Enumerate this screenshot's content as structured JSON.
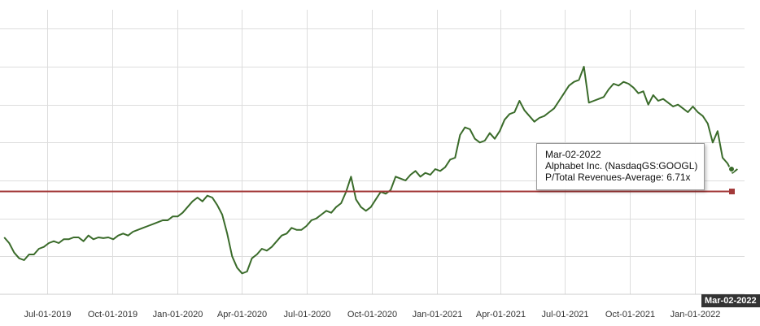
{
  "chart_data": {
    "type": "line",
    "series": [
      {
        "name": "Alphabet Inc. (NasdaqGS:GOOGL)",
        "color": "#3a6b2a",
        "points": [
          [
            "2019-05-01",
            5.5
          ],
          [
            "2019-05-08",
            5.35
          ],
          [
            "2019-05-15",
            5.1
          ],
          [
            "2019-05-22",
            4.95
          ],
          [
            "2019-05-29",
            4.9
          ],
          [
            "2019-06-05",
            5.05
          ],
          [
            "2019-06-12",
            5.05
          ],
          [
            "2019-06-19",
            5.2
          ],
          [
            "2019-06-26",
            5.25
          ],
          [
            "2019-07-03",
            5.35
          ],
          [
            "2019-07-10",
            5.4
          ],
          [
            "2019-07-17",
            5.35
          ],
          [
            "2019-07-24",
            5.45
          ],
          [
            "2019-07-31",
            5.45
          ],
          [
            "2019-08-07",
            5.5
          ],
          [
            "2019-08-14",
            5.5
          ],
          [
            "2019-08-21",
            5.4
          ],
          [
            "2019-08-28",
            5.55
          ],
          [
            "2019-09-04",
            5.45
          ],
          [
            "2019-09-11",
            5.5
          ],
          [
            "2019-09-18",
            5.48
          ],
          [
            "2019-09-25",
            5.5
          ],
          [
            "2019-10-02",
            5.45
          ],
          [
            "2019-10-09",
            5.55
          ],
          [
            "2019-10-16",
            5.6
          ],
          [
            "2019-10-23",
            5.55
          ],
          [
            "2019-10-30",
            5.65
          ],
          [
            "2019-11-06",
            5.7
          ],
          [
            "2019-11-13",
            5.75
          ],
          [
            "2019-11-20",
            5.8
          ],
          [
            "2019-11-27",
            5.85
          ],
          [
            "2019-12-04",
            5.9
          ],
          [
            "2019-12-11",
            5.95
          ],
          [
            "2019-12-18",
            5.95
          ],
          [
            "2019-12-25",
            6.05
          ],
          [
            "2020-01-01",
            6.05
          ],
          [
            "2020-01-08",
            6.15
          ],
          [
            "2020-01-15",
            6.3
          ],
          [
            "2020-01-22",
            6.45
          ],
          [
            "2020-01-29",
            6.55
          ],
          [
            "2020-02-05",
            6.45
          ],
          [
            "2020-02-12",
            6.6
          ],
          [
            "2020-02-19",
            6.55
          ],
          [
            "2020-02-26",
            6.35
          ],
          [
            "2020-03-04",
            6.1
          ],
          [
            "2020-03-11",
            5.6
          ],
          [
            "2020-03-18",
            5.0
          ],
          [
            "2020-03-25",
            4.7
          ],
          [
            "2020-04-01",
            4.55
          ],
          [
            "2020-04-08",
            4.6
          ],
          [
            "2020-04-15",
            4.95
          ],
          [
            "2020-04-22",
            5.05
          ],
          [
            "2020-04-29",
            5.2
          ],
          [
            "2020-05-06",
            5.15
          ],
          [
            "2020-05-13",
            5.25
          ],
          [
            "2020-05-20",
            5.4
          ],
          [
            "2020-05-27",
            5.55
          ],
          [
            "2020-06-03",
            5.6
          ],
          [
            "2020-06-10",
            5.75
          ],
          [
            "2020-06-17",
            5.7
          ],
          [
            "2020-06-24",
            5.7
          ],
          [
            "2020-07-01",
            5.8
          ],
          [
            "2020-07-08",
            5.95
          ],
          [
            "2020-07-15",
            6.0
          ],
          [
            "2020-07-22",
            6.1
          ],
          [
            "2020-07-29",
            6.2
          ],
          [
            "2020-08-05",
            6.15
          ],
          [
            "2020-08-12",
            6.3
          ],
          [
            "2020-08-19",
            6.4
          ],
          [
            "2020-08-26",
            6.7
          ],
          [
            "2020-09-02",
            7.1
          ],
          [
            "2020-09-09",
            6.5
          ],
          [
            "2020-09-16",
            6.3
          ],
          [
            "2020-09-23",
            6.2
          ],
          [
            "2020-09-30",
            6.3
          ],
          [
            "2020-10-07",
            6.5
          ],
          [
            "2020-10-14",
            6.7
          ],
          [
            "2020-10-21",
            6.65
          ],
          [
            "2020-10-28",
            6.75
          ],
          [
            "2020-11-04",
            7.1
          ],
          [
            "2020-11-11",
            7.05
          ],
          [
            "2020-11-18",
            7.0
          ],
          [
            "2020-11-25",
            7.15
          ],
          [
            "2020-12-02",
            7.25
          ],
          [
            "2020-12-09",
            7.1
          ],
          [
            "2020-12-16",
            7.2
          ],
          [
            "2020-12-23",
            7.15
          ],
          [
            "2020-12-30",
            7.3
          ],
          [
            "2021-01-06",
            7.25
          ],
          [
            "2021-01-13",
            7.35
          ],
          [
            "2021-01-20",
            7.55
          ],
          [
            "2021-01-27",
            7.6
          ],
          [
            "2021-02-03",
            8.2
          ],
          [
            "2021-02-10",
            8.4
          ],
          [
            "2021-02-17",
            8.35
          ],
          [
            "2021-02-24",
            8.1
          ],
          [
            "2021-03-03",
            8.0
          ],
          [
            "2021-03-10",
            8.05
          ],
          [
            "2021-03-17",
            8.25
          ],
          [
            "2021-03-24",
            8.1
          ],
          [
            "2021-03-31",
            8.3
          ],
          [
            "2021-04-07",
            8.6
          ],
          [
            "2021-04-14",
            8.75
          ],
          [
            "2021-04-21",
            8.8
          ],
          [
            "2021-04-28",
            9.1
          ],
          [
            "2021-05-05",
            8.85
          ],
          [
            "2021-05-12",
            8.7
          ],
          [
            "2021-05-19",
            8.55
          ],
          [
            "2021-05-26",
            8.65
          ],
          [
            "2021-06-02",
            8.7
          ],
          [
            "2021-06-09",
            8.8
          ],
          [
            "2021-06-16",
            8.9
          ],
          [
            "2021-06-23",
            9.1
          ],
          [
            "2021-06-30",
            9.3
          ],
          [
            "2021-07-07",
            9.5
          ],
          [
            "2021-07-14",
            9.6
          ],
          [
            "2021-07-21",
            9.65
          ],
          [
            "2021-07-28",
            10.0
          ],
          [
            "2021-08-04",
            9.05
          ],
          [
            "2021-08-11",
            9.1
          ],
          [
            "2021-08-18",
            9.15
          ],
          [
            "2021-08-25",
            9.2
          ],
          [
            "2021-09-01",
            9.4
          ],
          [
            "2021-09-08",
            9.55
          ],
          [
            "2021-09-15",
            9.5
          ],
          [
            "2021-09-22",
            9.6
          ],
          [
            "2021-09-29",
            9.55
          ],
          [
            "2021-10-06",
            9.45
          ],
          [
            "2021-10-13",
            9.3
          ],
          [
            "2021-10-20",
            9.35
          ],
          [
            "2021-10-27",
            9.0
          ],
          [
            "2021-11-03",
            9.25
          ],
          [
            "2021-11-10",
            9.1
          ],
          [
            "2021-11-17",
            9.15
          ],
          [
            "2021-11-24",
            9.05
          ],
          [
            "2021-12-01",
            8.95
          ],
          [
            "2021-12-08",
            9.0
          ],
          [
            "2021-12-15",
            8.9
          ],
          [
            "2021-12-22",
            8.8
          ],
          [
            "2021-12-29",
            8.95
          ],
          [
            "2022-01-05",
            8.8
          ],
          [
            "2022-01-12",
            8.7
          ],
          [
            "2022-01-19",
            8.5
          ],
          [
            "2022-01-26",
            8.0
          ],
          [
            "2022-02-02",
            8.3
          ],
          [
            "2022-02-09",
            7.6
          ],
          [
            "2022-02-16",
            7.45
          ],
          [
            "2022-02-23",
            7.2
          ],
          [
            "2022-03-02",
            7.3
          ]
        ]
      }
    ],
    "reference_line": {
      "label": "P/Total Revenues-Average",
      "value": 6.71,
      "color": "#a33a3a"
    },
    "x_ticks": [
      "Jul-01-2019",
      "Oct-01-2019",
      "Jan-01-2020",
      "Apr-01-2020",
      "Jul-01-2020",
      "Oct-01-2020",
      "Jan-01-2021",
      "Apr-01-2021",
      "Jul-01-2021",
      "Oct-01-2021",
      "Jan-01-2022"
    ],
    "xlim": [
      "2019-04-25",
      "2022-03-12"
    ],
    "ylim": [
      4.0,
      11.5
    ],
    "y_gridlines": [
      5,
      6,
      7,
      8,
      9,
      10,
      11
    ],
    "grid": true,
    "title": "",
    "xlabel": "",
    "ylabel": ""
  },
  "tooltip": {
    "date": "Mar-02-2022",
    "company": "Alphabet Inc. (NasdaqGS:GOOGL)",
    "metric_line": "P/Total Revenues-Average: 6.71x"
  },
  "x_flag": "Mar-02-2022"
}
